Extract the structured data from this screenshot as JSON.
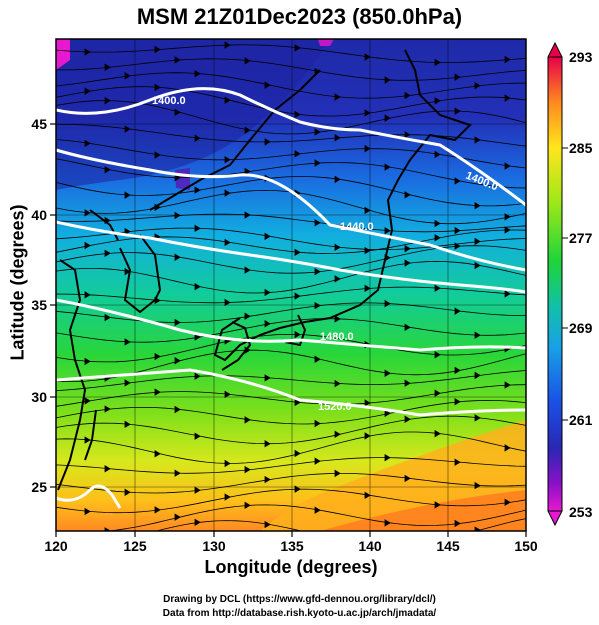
{
  "title": "MSM 21Z01Dec2023 (850.0hPa)",
  "x_axis": {
    "label": "Longitude (degrees)",
    "ticks": [
      "120",
      "125",
      "130",
      "135",
      "140",
      "145",
      "150"
    ]
  },
  "y_axis": {
    "label": "Latitude  (degrees)",
    "ticks": [
      "25",
      "30",
      "35",
      "40",
      "45"
    ]
  },
  "colorbar": {
    "ticks": [
      "293",
      "285",
      "277",
      "269",
      "261",
      "253"
    ],
    "colors": [
      "#e8004a",
      "#ff8a1e",
      "#ffe61c",
      "#9ee818",
      "#1ed43a",
      "#12c0a8",
      "#18a0e6",
      "#1a50e6",
      "#2828b4",
      "#8a10c8",
      "#e818d0"
    ]
  },
  "contours": [
    {
      "label": "1400.0"
    },
    {
      "label": "1400.0"
    },
    {
      "label": "1440.0"
    },
    {
      "label": "1480.0"
    },
    {
      "label": "1520.0"
    }
  ],
  "credits": {
    "line1": "Drawing by DCL (https://www.gfd-dennou.org/library/dcl/)",
    "line2": "Data from http://database.rish.kyoto-u.ac.jp/arch/jmadata/"
  }
}
